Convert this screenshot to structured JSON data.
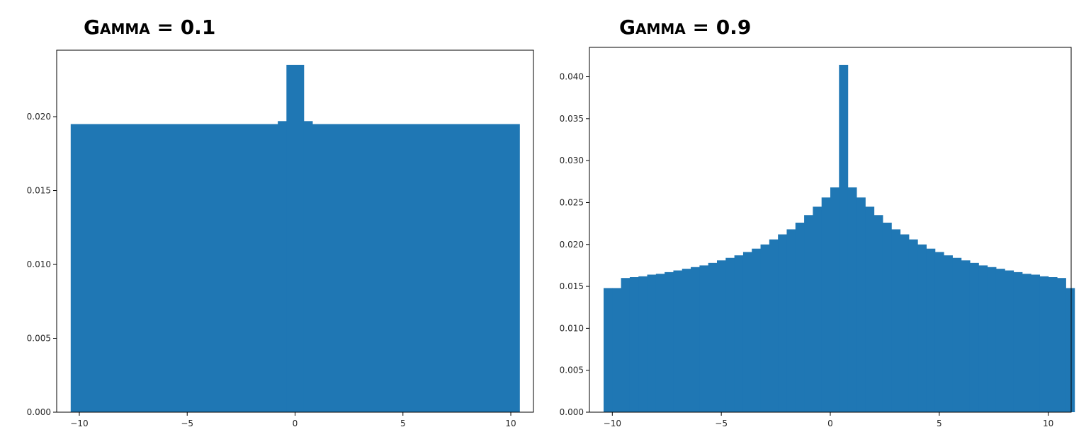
{
  "chart_data": [
    {
      "type": "bar",
      "title": "Gamma = 0.1",
      "xlabel": "",
      "ylabel": "",
      "xlim": [
        -11.05,
        11.05
      ],
      "ylim": [
        0,
        0.0245
      ],
      "xticks": [
        -10,
        -5,
        0,
        5,
        10
      ],
      "xtick_labels": [
        "−10",
        "−5",
        "0",
        "5",
        "10"
      ],
      "yticks": [
        0.0,
        0.005,
        0.01,
        0.015,
        0.02
      ],
      "ytick_labels": [
        "0.000",
        "0.005",
        "0.010",
        "0.015",
        "0.020"
      ],
      "grid": false,
      "bars": [
        {
          "x0": -10.4,
          "x1": -0.8,
          "value": 0.0195
        },
        {
          "x0": -0.8,
          "x1": -0.4,
          "value": 0.0197
        },
        {
          "x0": -0.4,
          "x1": 0.4,
          "value": 0.0235
        },
        {
          "x0": 0.4,
          "x1": 0.8,
          "value": 0.0197
        },
        {
          "x0": 0.8,
          "x1": 10.4,
          "value": 0.0195
        }
      ]
    },
    {
      "type": "bar",
      "title": "Gamma = 0.9",
      "xlabel": "",
      "ylabel": "",
      "xlim": [
        -11.05,
        11.05
      ],
      "ylim": [
        0,
        0.0435
      ],
      "xticks": [
        -10,
        -5,
        0,
        5,
        10
      ],
      "xtick_labels": [
        "−10",
        "−5",
        "0",
        "5",
        "10"
      ],
      "yticks": [
        0.0,
        0.005,
        0.01,
        0.015,
        0.02,
        0.025,
        0.03,
        0.035,
        0.04
      ],
      "ytick_labels": [
        "0.000",
        "0.005",
        "0.010",
        "0.015",
        "0.020",
        "0.025",
        "0.030",
        "0.035",
        "0.040"
      ],
      "grid": false,
      "bin_start": -10.4,
      "bin_width": 0.4,
      "values": [
        0.0148,
        0.0148,
        0.016,
        0.0161,
        0.0162,
        0.0164,
        0.0165,
        0.0167,
        0.0169,
        0.0171,
        0.0173,
        0.0175,
        0.0178,
        0.0181,
        0.0184,
        0.0187,
        0.0191,
        0.0195,
        0.02,
        0.0206,
        0.0212,
        0.0218,
        0.0226,
        0.0235,
        0.0245,
        0.0256,
        0.0268,
        0.0414,
        0.0268,
        0.0256,
        0.0245,
        0.0235,
        0.0226,
        0.0218,
        0.0212,
        0.0206,
        0.02,
        0.0195,
        0.0191,
        0.0187,
        0.0184,
        0.0181,
        0.0178,
        0.0175,
        0.0173,
        0.0171,
        0.0169,
        0.0167,
        0.0165,
        0.0164,
        0.0162,
        0.0161,
        0.016,
        0.0148
      ]
    }
  ],
  "style": {
    "bar_color": "#1f77b4",
    "axis_color": "#000000"
  }
}
